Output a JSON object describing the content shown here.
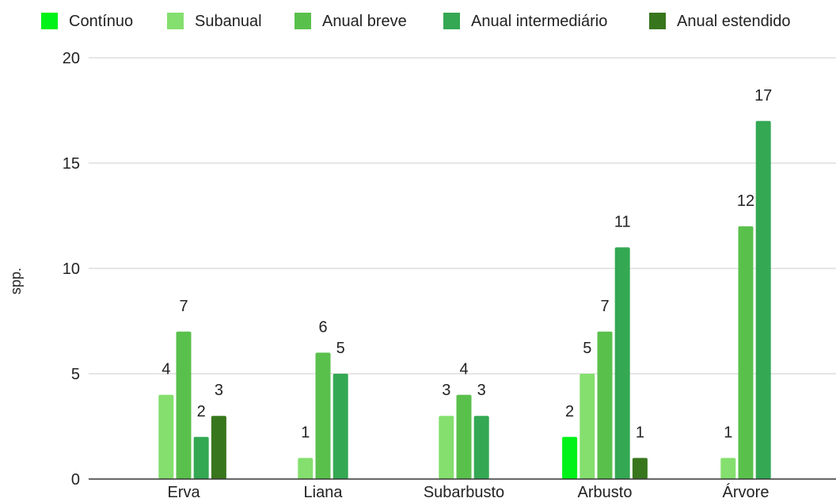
{
  "chart_data": {
    "type": "bar",
    "title": "",
    "xlabel": "",
    "ylabel": "spp.",
    "ylim": [
      0,
      20
    ],
    "yticks": [
      0,
      5,
      10,
      15,
      20
    ],
    "grid": true,
    "legend_position": "top",
    "categories": [
      "Erva",
      "Liana",
      "Subarbusto",
      "Arbusto",
      "Árvore"
    ],
    "series": [
      {
        "name": "Contínuo",
        "color": "#00f218",
        "values": [
          null,
          null,
          null,
          2,
          null
        ]
      },
      {
        "name": "Subanual",
        "color": "#84df6e",
        "values": [
          4,
          1,
          3,
          5,
          1
        ]
      },
      {
        "name": "Anual breve",
        "color": "#5ac04c",
        "values": [
          7,
          6,
          4,
          7,
          12
        ]
      },
      {
        "name": "Anual intermediário",
        "color": "#34a853",
        "values": [
          2,
          5,
          3,
          11,
          17
        ]
      },
      {
        "name": "Anual estendido",
        "color": "#38761d",
        "values": [
          3,
          null,
          null,
          1,
          null
        ]
      }
    ]
  }
}
